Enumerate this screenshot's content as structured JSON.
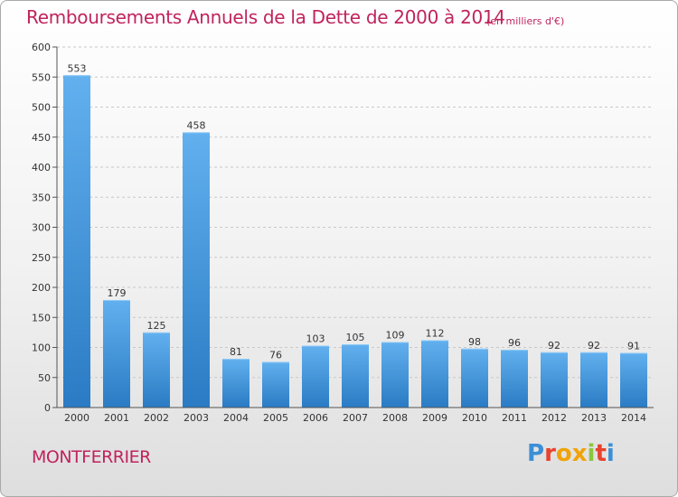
{
  "header": {
    "title": "Remboursements Annuels de la Dette de 2000 à 2014",
    "subtitle": "(en milliers d'€)"
  },
  "footer": {
    "commune": "MONTFERRIER",
    "logo_text": "Proxiti",
    "logo_colors": [
      "#3b8fd6",
      "#e8432e",
      "#f0a30a",
      "#f0a30a",
      "#8cc63e",
      "#e8432e",
      "#3b8fd6"
    ]
  },
  "colors": {
    "bar_top": "#62b0ee",
    "bar_bottom": "#2a7bc4",
    "title": "#c0245c"
  },
  "chart_data": {
    "type": "bar",
    "title": "Remboursements Annuels de la Dette de 2000 à 2014",
    "subtitle": "(en milliers d'€)",
    "categories": [
      "2000",
      "2001",
      "2002",
      "2003",
      "2004",
      "2005",
      "2006",
      "2007",
      "2008",
      "2009",
      "2010",
      "2011",
      "2012",
      "2013",
      "2014"
    ],
    "values": [
      553,
      179,
      125,
      458,
      81,
      76,
      103,
      105,
      109,
      112,
      98,
      96,
      92,
      92,
      91
    ],
    "ylim": [
      0,
      600
    ],
    "yticks": [
      0,
      50,
      100,
      150,
      200,
      250,
      300,
      350,
      400,
      450,
      500,
      550,
      600
    ],
    "grid": "horizontal-dashed",
    "xlabel": "",
    "ylabel": ""
  }
}
